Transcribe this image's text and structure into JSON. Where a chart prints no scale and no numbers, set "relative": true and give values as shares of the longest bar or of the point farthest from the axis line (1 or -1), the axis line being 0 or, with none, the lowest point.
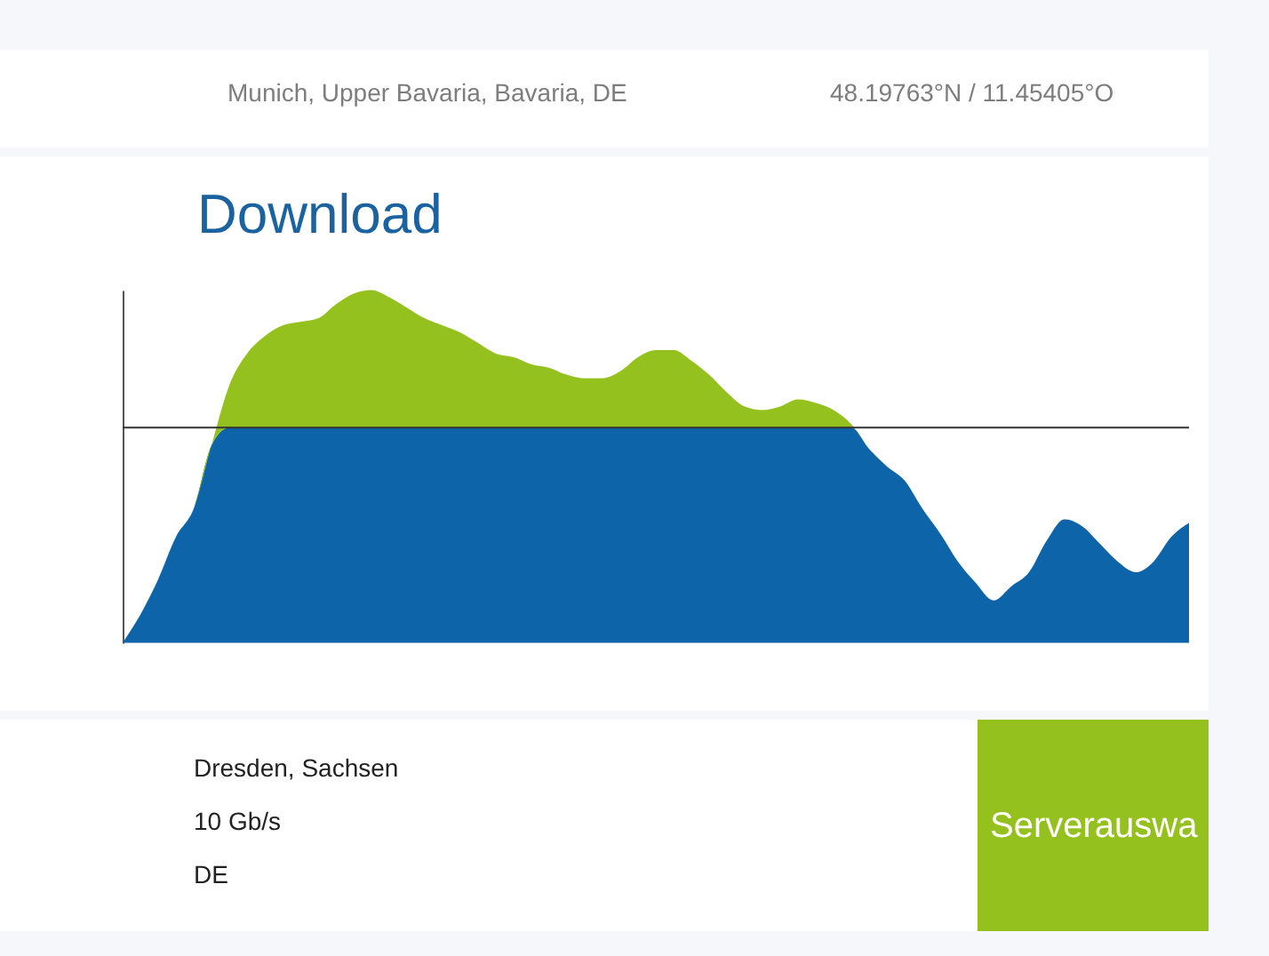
{
  "chart_data": {
    "type": "area",
    "title": "Download",
    "categories": [
      null,
      null,
      null,
      null,
      null,
      null,
      null,
      null,
      null,
      null,
      null,
      null,
      null,
      null,
      null,
      null,
      null,
      null,
      null,
      null,
      null,
      null,
      null,
      null,
      null,
      null,
      null,
      null,
      null,
      null,
      null,
      null,
      null,
      null,
      null,
      null,
      null,
      null,
      null,
      null,
      null,
      null,
      null,
      null,
      null,
      null,
      null,
      null,
      null,
      null,
      null,
      null,
      null,
      null,
      null,
      null,
      null,
      null,
      null,
      null,
      null
    ],
    "relative": true,
    "stacked": true,
    "series": [
      {
        "color": "#0e64a8",
        "values": [
          0,
          0.08,
          0.18,
          0.3,
          0.38,
          0.56,
          0.61,
          0.61,
          0.61,
          0.61,
          0.61,
          0.61,
          0.61,
          0.61,
          0.61,
          0.61,
          0.61,
          0.61,
          0.61,
          0.61,
          0.61,
          0.61,
          0.61,
          0.61,
          0.61,
          0.61,
          0.61,
          0.61,
          0.61,
          0.61,
          0.61,
          0.61,
          0.61,
          0.61,
          0.61,
          0.61,
          0.61,
          0.61,
          0.61,
          0.61,
          0.61,
          0.61,
          0.55,
          0.5,
          0.46,
          0.38,
          0.31,
          0.23,
          0.17,
          0.12,
          0.16,
          0.2,
          0.29,
          0.35,
          0.33,
          0.28,
          0.23,
          0.2,
          0.23,
          0.3,
          0.34
        ]
      },
      {
        "color": "#95c11f",
        "values": [
          0,
          0,
          0,
          0,
          0,
          0,
          0.12,
          0.21,
          0.26,
          0.29,
          0.3,
          0.31,
          0.35,
          0.38,
          0.39,
          0.37,
          0.34,
          0.31,
          0.29,
          0.27,
          0.24,
          0.21,
          0.2,
          0.18,
          0.17,
          0.15,
          0.14,
          0.14,
          0.16,
          0.2,
          0.22,
          0.22,
          0.19,
          0.15,
          0.1,
          0.06,
          0.05,
          0.06,
          0.08,
          0.07,
          0.05,
          0.01,
          0,
          0,
          0,
          0,
          0,
          0,
          0,
          0,
          0,
          0,
          0,
          0,
          0,
          0,
          0,
          0,
          0,
          0,
          0
        ]
      }
    ],
    "ref_lines": [
      {
        "axis": "y",
        "value": 0.61,
        "color": "#333333"
      }
    ],
    "annotations": [
      "Munich, Upper Bavaria, Bavaria, DE",
      "48.19763°N / 11.45405°O",
      "Dresden, Sachsen",
      "10 Gb/s",
      "DE",
      "Serverauswa"
    ]
  }
}
